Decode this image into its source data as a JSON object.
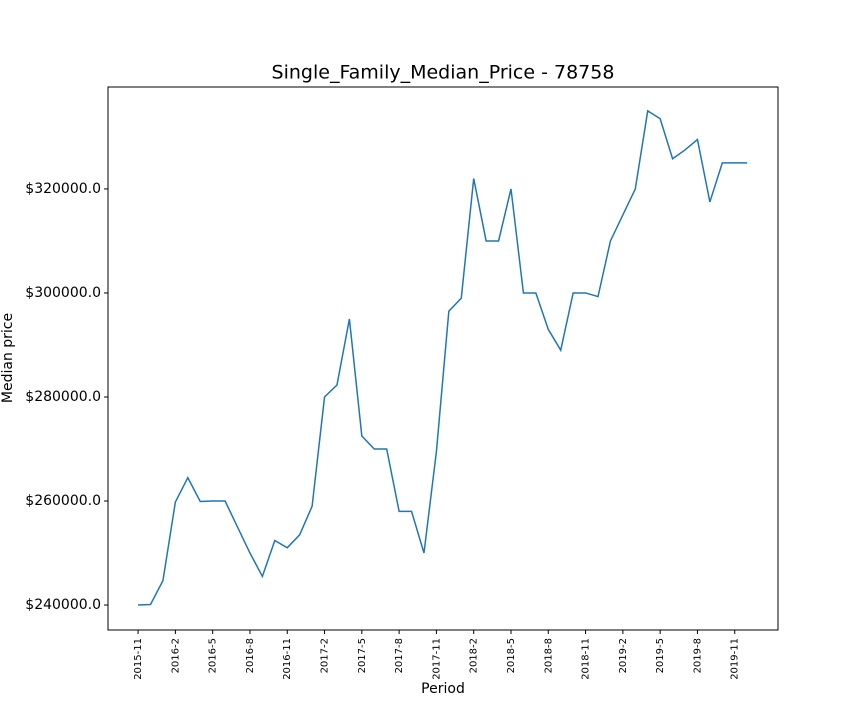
{
  "chart_data": {
    "type": "line",
    "title": "Single_Family_Median_Price - 78758",
    "x_label": "Period",
    "y_label": "Median price",
    "categories": [
      "2015-11",
      null,
      null,
      "2016-2",
      null,
      null,
      "2016-5",
      null,
      null,
      "2016-8",
      null,
      null,
      "2016-11",
      null,
      null,
      "2017-2",
      null,
      null,
      "2017-5",
      null,
      null,
      "2017-8",
      null,
      null,
      "2017-11",
      null,
      null,
      "2018-2",
      null,
      null,
      "2018-5",
      null,
      null,
      "2018-8",
      null,
      null,
      "2018-11",
      null,
      null,
      "2019-2",
      null,
      null,
      "2019-5",
      null,
      null,
      "2019-8",
      null,
      null,
      "2019-11",
      null
    ],
    "series": [
      {
        "name": "Single_Family_Median_Price",
        "color": "#1f77b4",
        "values": [
          240000,
          240100,
          244700,
          259800,
          264500,
          259900,
          260000,
          260000,
          255000,
          250000,
          245500,
          252400,
          251000,
          253500,
          259000,
          280000,
          282300,
          295000,
          272500,
          270000,
          270000,
          258000,
          258000,
          250000,
          269500,
          296500,
          299000,
          322000,
          310000,
          310000,
          320000,
          300000,
          300000,
          293000,
          289000,
          300000,
          300000,
          299300,
          310000,
          315000,
          320000,
          335000,
          333500,
          325800,
          327500,
          329500,
          317500,
          325000,
          325000,
          325000
        ]
      }
    ],
    "ylim": [
      235200,
      339600
    ],
    "yticks": [
      {
        "value": 240000,
        "label": "$240000.0"
      },
      {
        "value": 260000,
        "label": "$260000.0"
      },
      {
        "value": 280000,
        "label": "$280000.0"
      },
      {
        "value": 300000,
        "label": "$300000.0"
      },
      {
        "value": 320000,
        "label": "$320000.0"
      }
    ],
    "grid": false
  }
}
